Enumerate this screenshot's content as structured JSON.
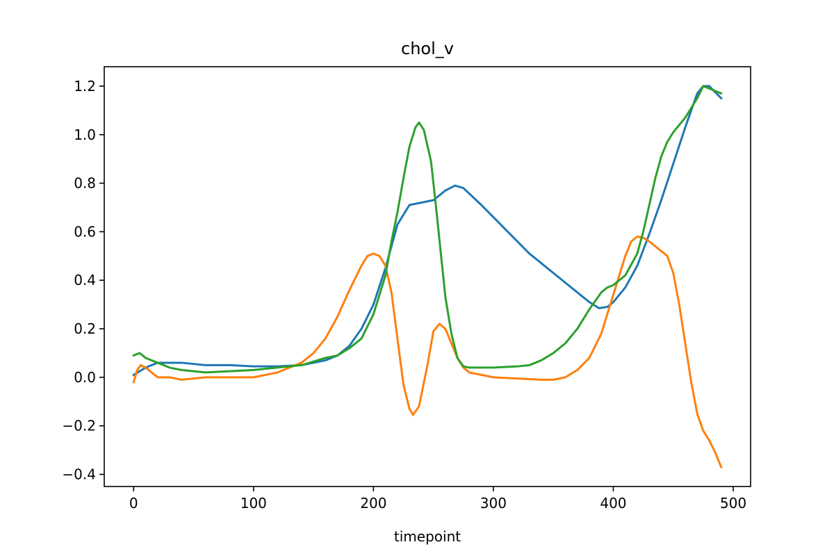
{
  "chart_data": {
    "type": "line",
    "title": "chol_v",
    "xlabel": "timepoint",
    "ylabel": "",
    "xlim": [
      -24.5,
      514.5
    ],
    "ylim": [
      -0.45,
      1.28
    ],
    "x_ticks": [
      0,
      100,
      200,
      300,
      400,
      500
    ],
    "y_ticks": [
      -0.4,
      -0.2,
      0.0,
      0.2,
      0.4,
      0.6,
      0.8,
      1.0,
      1.2
    ],
    "x_tick_labels": [
      "0",
      "100",
      "200",
      "300",
      "400",
      "500"
    ],
    "y_tick_labels": [
      "−0.4",
      "−0.2",
      "0.0",
      "0.2",
      "0.4",
      "0.6",
      "0.8",
      "1.0",
      "1.2"
    ],
    "grid": false,
    "legend": "none",
    "series": [
      {
        "color": "#1f77b4",
        "x": [
          0,
          10,
          20,
          30,
          40,
          60,
          80,
          100,
          120,
          140,
          160,
          170,
          180,
          190,
          200,
          210,
          220,
          230,
          240,
          250,
          260,
          268,
          275,
          290,
          300,
          310,
          320,
          330,
          340,
          350,
          360,
          370,
          380,
          388,
          395,
          400,
          410,
          420,
          430,
          440,
          450,
          460,
          470,
          475,
          480,
          490
        ],
        "y": [
          0.01,
          0.04,
          0.06,
          0.06,
          0.06,
          0.05,
          0.05,
          0.045,
          0.045,
          0.05,
          0.07,
          0.09,
          0.13,
          0.2,
          0.3,
          0.45,
          0.63,
          0.71,
          0.72,
          0.73,
          0.77,
          0.79,
          0.78,
          0.71,
          0.66,
          0.61,
          0.56,
          0.51,
          0.47,
          0.43,
          0.39,
          0.35,
          0.31,
          0.285,
          0.29,
          0.31,
          0.37,
          0.46,
          0.59,
          0.73,
          0.88,
          1.03,
          1.17,
          1.2,
          1.2,
          1.15
        ]
      },
      {
        "color": "#ff7f0e",
        "x": [
          0,
          3,
          6,
          10,
          15,
          20,
          30,
          40,
          60,
          80,
          100,
          120,
          140,
          150,
          160,
          170,
          180,
          190,
          195,
          200,
          205,
          210,
          215,
          220,
          225,
          230,
          233,
          238,
          245,
          250,
          255,
          260,
          265,
          270,
          275,
          280,
          290,
          300,
          320,
          340,
          350,
          360,
          370,
          380,
          390,
          400,
          410,
          415,
          420,
          425,
          430,
          435,
          440,
          445,
          450,
          455,
          460,
          465,
          470,
          475,
          480,
          485,
          490
        ],
        "y": [
          -0.02,
          0.03,
          0.05,
          0.04,
          0.02,
          0.0,
          0.0,
          -0.01,
          0.0,
          0.0,
          0.0,
          0.02,
          0.06,
          0.1,
          0.16,
          0.25,
          0.36,
          0.46,
          0.5,
          0.51,
          0.5,
          0.46,
          0.35,
          0.16,
          -0.03,
          -0.13,
          -0.155,
          -0.12,
          0.05,
          0.19,
          0.22,
          0.2,
          0.14,
          0.08,
          0.04,
          0.02,
          0.01,
          0.0,
          -0.005,
          -0.01,
          -0.01,
          0.0,
          0.03,
          0.08,
          0.18,
          0.34,
          0.5,
          0.56,
          0.58,
          0.575,
          0.56,
          0.54,
          0.52,
          0.5,
          0.43,
          0.3,
          0.14,
          -0.02,
          -0.15,
          -0.22,
          -0.26,
          -0.31,
          -0.37
        ]
      },
      {
        "color": "#2ca02c",
        "x": [
          0,
          5,
          10,
          20,
          30,
          40,
          50,
          60,
          80,
          100,
          120,
          140,
          160,
          170,
          180,
          190,
          200,
          210,
          215,
          220,
          225,
          230,
          235,
          238,
          242,
          248,
          252,
          256,
          260,
          265,
          270,
          275,
          280,
          290,
          300,
          320,
          330,
          340,
          350,
          360,
          370,
          380,
          390,
          395,
          400,
          410,
          420,
          425,
          430,
          435,
          440,
          445,
          450,
          460,
          470,
          475,
          480,
          490
        ],
        "y": [
          0.09,
          0.1,
          0.08,
          0.06,
          0.04,
          0.03,
          0.025,
          0.02,
          0.025,
          0.03,
          0.04,
          0.05,
          0.08,
          0.09,
          0.12,
          0.16,
          0.26,
          0.42,
          0.56,
          0.68,
          0.82,
          0.95,
          1.03,
          1.05,
          1.02,
          0.89,
          0.71,
          0.52,
          0.33,
          0.18,
          0.08,
          0.045,
          0.04,
          0.04,
          0.04,
          0.045,
          0.05,
          0.07,
          0.1,
          0.14,
          0.2,
          0.28,
          0.35,
          0.37,
          0.38,
          0.42,
          0.51,
          0.6,
          0.71,
          0.82,
          0.91,
          0.97,
          1.01,
          1.07,
          1.15,
          1.2,
          1.19,
          1.17
        ]
      }
    ]
  }
}
